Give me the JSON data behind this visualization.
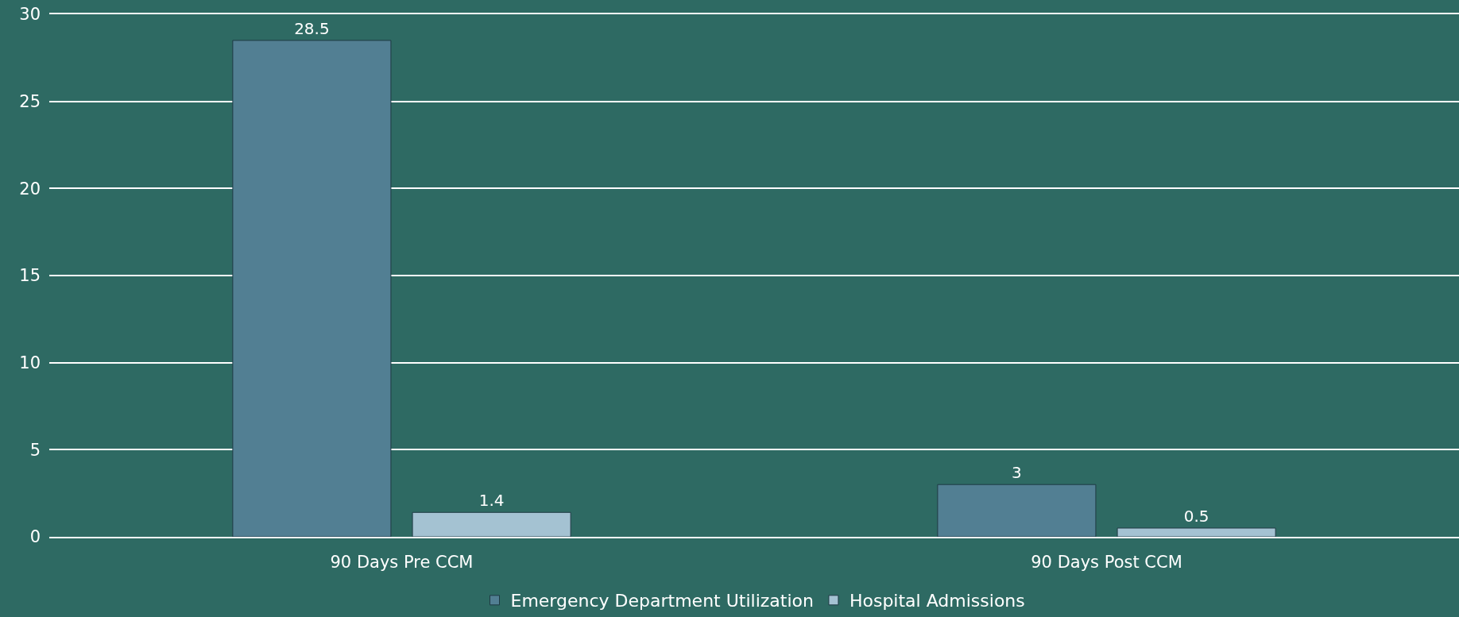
{
  "chart_data": {
    "type": "bar",
    "categories": [
      "90 Days Pre CCM",
      "90 Days Post CCM"
    ],
    "series": [
      {
        "name": "Emergency Department Utilization",
        "color": "#527f93",
        "values": [
          28.5,
          3
        ]
      },
      {
        "name": "Hospital Admissions",
        "color": "#a4c2d2",
        "values": [
          1.4,
          0.5
        ]
      }
    ],
    "ylim": [
      0,
      30
    ],
    "yticks": [
      0,
      5,
      10,
      15,
      20,
      25,
      30
    ],
    "grid": "y",
    "legend": "bottom",
    "data_labels": true
  }
}
